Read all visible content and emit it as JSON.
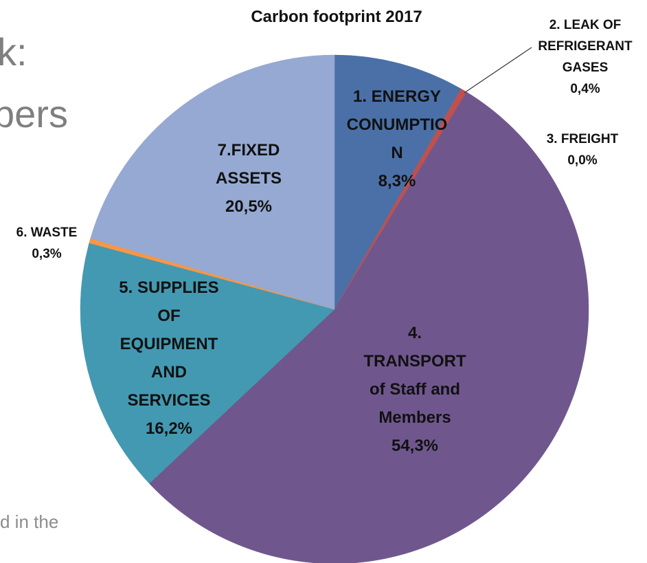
{
  "background": {
    "line1": "k:",
    "line2": "pers",
    "line3": "d in the"
  },
  "chart_data": {
    "type": "pie",
    "title": "Carbon footprint 2017",
    "slices": [
      {
        "label": "1. ENERGY CONUMPTIO N",
        "value": 8.3,
        "display": "8,3%",
        "color": "#4a70a7"
      },
      {
        "label": "2. LEAK OF REFRIGERANT GASES",
        "value": 0.4,
        "display": "0,4%",
        "color": "#c0504d"
      },
      {
        "label": "3. FREIGHT",
        "value": 0.0,
        "display": "0,0%",
        "color": "#9bbb59"
      },
      {
        "label": "4. TRANSPORT of Staff and Members",
        "value": 54.3,
        "display": "54,3%",
        "color": "#6f578e"
      },
      {
        "label": "5. SUPPLIES OF EQUIPMENT AND SERVICES",
        "value": 16.2,
        "display": "16,2%",
        "color": "#4399b1"
      },
      {
        "label": "6. WASTE",
        "value": 0.3,
        "display": "0,3%",
        "color": "#f79646"
      },
      {
        "label": "7.FIXED ASSETS",
        "value": 20.5,
        "display": "20,5%",
        "color": "#95a9d2"
      }
    ],
    "label_lines": [
      [
        "1. ENERGY",
        "CONUMPTIO",
        "N",
        "8,3%"
      ],
      [
        "2. LEAK OF",
        "REFRIGERANT",
        "GASES",
        "0,4%"
      ],
      [
        "3. FREIGHT",
        "0,0%"
      ],
      [
        "4.",
        "TRANSPORT",
        "of Staff and",
        "Members",
        "54,3%"
      ],
      [
        "5. SUPPLIES",
        "OF",
        "EQUIPMENT",
        "AND",
        "SERVICES",
        "16,2%"
      ],
      [
        "6. WASTE",
        "0,3%"
      ],
      [
        "7.FIXED",
        "ASSETS",
        "20,5%"
      ]
    ],
    "start_angle_deg": 0,
    "direction": "clockwise"
  }
}
